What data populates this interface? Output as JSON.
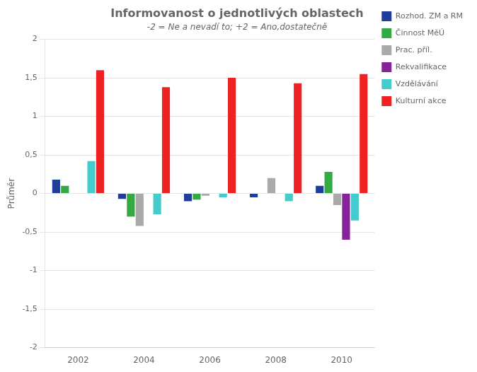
{
  "chart_data": {
    "type": "bar",
    "title": "Informovanost o jednotlivých oblastech",
    "subtitle": "-2 = Ne a nevadí to; +2 = Ano,dostatečně",
    "y_label": "Průměr",
    "categories": [
      "2002",
      "2004",
      "2006",
      "2008",
      "2010"
    ],
    "series": [
      {
        "name": "Rozhod. ZM a RM",
        "color": "#1f3d99",
        "values": [
          0.18,
          -0.07,
          -0.1,
          -0.05,
          0.1
        ]
      },
      {
        "name": "Činnost MěÚ",
        "color": "#33aa44",
        "values": [
          0.1,
          -0.3,
          -0.08,
          0.0,
          0.28
        ]
      },
      {
        "name": "Prac. příl.",
        "color": "#aaaaaa",
        "values": [
          0.0,
          -0.42,
          -0.03,
          0.2,
          -0.15
        ]
      },
      {
        "name": "Rekvalifikace",
        "color": "#882299",
        "values": [
          0.0,
          0.0,
          0.0,
          0.0,
          -0.6
        ]
      },
      {
        "name": "Vzdělávání",
        "color": "#44cccc",
        "values": [
          0.42,
          -0.27,
          -0.05,
          -0.1,
          -0.35
        ]
      },
      {
        "name": "Kulturní akce",
        "color": "#ee2222",
        "values": [
          1.6,
          1.38,
          1.5,
          1.43,
          1.55
        ]
      }
    ],
    "ylim": [
      -2,
      2
    ],
    "yticks": [
      -2,
      {
        "value": -1.5,
        "label": "-1,5"
      },
      -1,
      {
        "value": -0.5,
        "label": "-0,5"
      },
      0,
      {
        "value": 0.5,
        "label": "0,5"
      },
      1,
      {
        "value": 1.5,
        "label": "1,5"
      },
      2
    ],
    "grid": true,
    "legend": "right"
  }
}
